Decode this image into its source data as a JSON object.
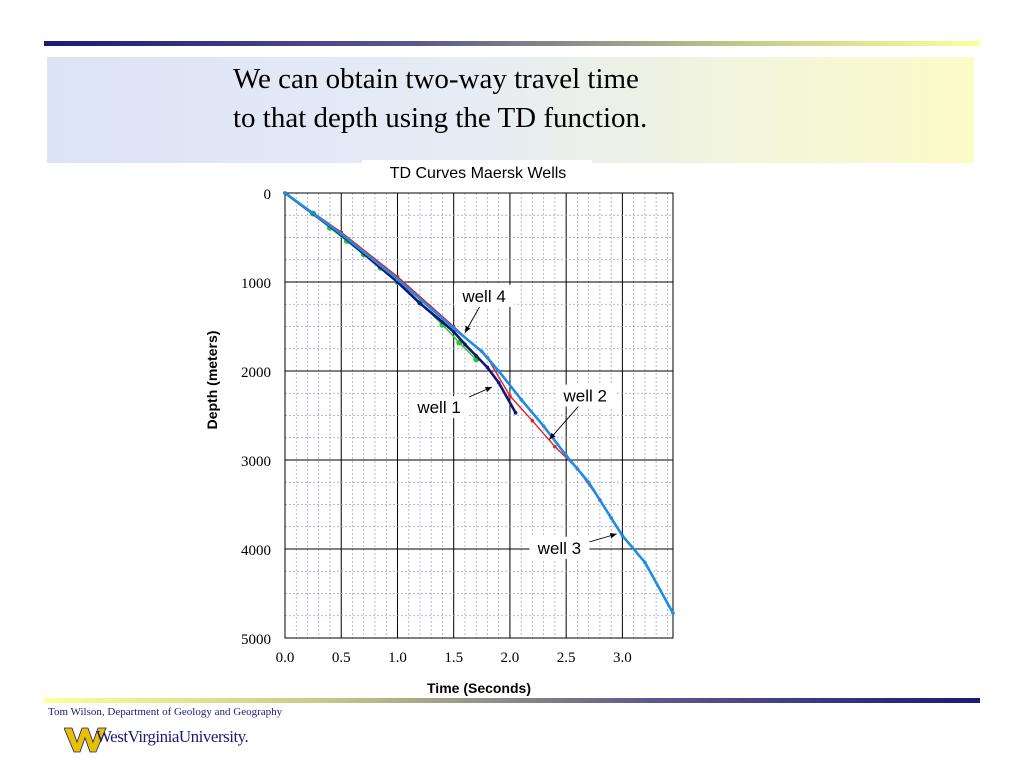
{
  "slide": {
    "title_line1": "We can obtain two-way travel time",
    "title_line2": "to that depth using the TD function.",
    "footer_credit": "Tom Wilson, Department of Geology and Geography",
    "logo_text": "WestVirginiaUniversity."
  },
  "colors": {
    "navy": "#1a1a7a",
    "gold": "#e8c000",
    "well1": "#141478",
    "well2": "#e52020",
    "well3": "#1e8ce6",
    "well4": "#22cc22"
  },
  "chart_data": {
    "type": "line",
    "title": "TD Curves Maersk Wells",
    "xlabel": "Time (Seconds)",
    "ylabel": "Depth (meters)",
    "xlim": [
      0,
      3.45
    ],
    "ylim": [
      5000,
      0
    ],
    "y_inverted": true,
    "x_ticks": [
      "0.0",
      "0.5",
      "1.0",
      "1.5",
      "2.0",
      "2.5",
      "3.0"
    ],
    "y_ticks": [
      "0",
      "1000",
      "2000",
      "3000",
      "4000",
      "5000"
    ],
    "grid": true,
    "series": [
      {
        "name": "well 1",
        "color": "#141478",
        "x": [
          0.0,
          0.5,
          1.0,
          1.2,
          1.4,
          1.5,
          1.6,
          1.7,
          1.8,
          1.9,
          2.05
        ],
        "y": [
          0,
          470,
          1000,
          1240,
          1450,
          1560,
          1700,
          1830,
          1960,
          2130,
          2470
        ]
      },
      {
        "name": "well 2",
        "color": "#e52020",
        "x": [
          0.0,
          0.5,
          1.0,
          1.5,
          1.8,
          2.0,
          2.2,
          2.4,
          2.6,
          2.8
        ],
        "y": [
          0,
          440,
          940,
          1500,
          1850,
          2280,
          2560,
          2850,
          3100,
          3450
        ]
      },
      {
        "name": "well 3",
        "color": "#1e8ce6",
        "x": [
          0.0,
          0.5,
          1.0,
          1.5,
          1.75,
          1.9,
          2.1,
          2.3,
          2.5,
          2.7,
          2.9,
          3.0,
          3.2,
          3.45
        ],
        "y": [
          0,
          460,
          970,
          1520,
          1780,
          2000,
          2320,
          2620,
          2950,
          3250,
          3650,
          3850,
          4150,
          4720
        ]
      },
      {
        "name": "well 4",
        "color": "#22cc22",
        "x": [
          0.25,
          0.4,
          0.55,
          0.7,
          0.85,
          1.0,
          1.2,
          1.4,
          1.55,
          1.7
        ],
        "y": [
          230,
          390,
          540,
          690,
          840,
          1000,
          1230,
          1480,
          1680,
          1870
        ]
      }
    ],
    "annotations": [
      {
        "text": "well 4",
        "x": 1.77,
        "y": 1190,
        "arrow_to": [
          1.6,
          1570
        ]
      },
      {
        "text": "well 1",
        "x": 1.37,
        "y": 2440,
        "arrow_to": [
          1.84,
          2180
        ]
      },
      {
        "text": "well 2",
        "x": 2.67,
        "y": 2310,
        "arrow_to": [
          2.35,
          2770
        ]
      },
      {
        "text": "well 3",
        "x": 2.44,
        "y": 4020,
        "arrow_to": [
          2.95,
          3830
        ]
      }
    ]
  }
}
